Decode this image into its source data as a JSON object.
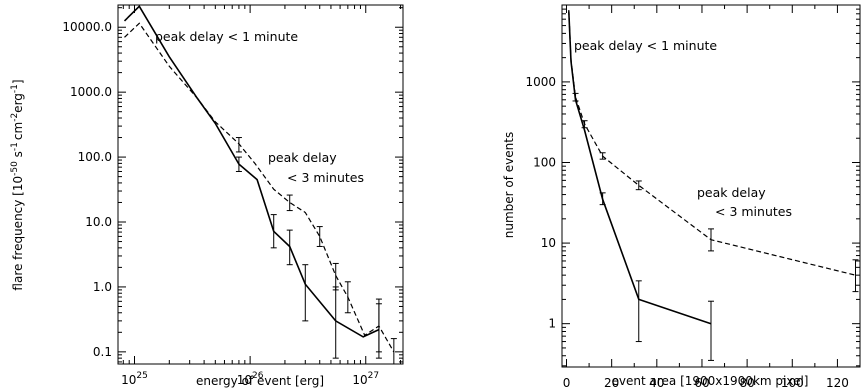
{
  "chart_data": [
    {
      "type": "line",
      "title": "",
      "xlabel": "energy of event [erg]",
      "ylabel": "flare frequency [10^-50 s^-1 cm^-2 erg^-1]",
      "ylabel_parts": [
        "flare frequency [10",
        "-50",
        " s",
        "-1",
        "cm",
        "-2",
        "erg",
        "-1",
        "]"
      ],
      "xscale": "log",
      "yscale": "log",
      "xlim": [
        7.2e+24,
        2.1e+27
      ],
      "ylim": [
        0.065,
        22000
      ],
      "x_ticks": [
        {
          "value": 1e+25,
          "base": "10",
          "exp": "25"
        },
        {
          "value": 1e+26,
          "base": "10",
          "exp": "26"
        },
        {
          "value": 1e+27,
          "base": "10",
          "exp": "27"
        }
      ],
      "y_ticks": [
        {
          "value": 10000,
          "label": "10000.0"
        },
        {
          "value": 1000,
          "label": "1000.0"
        },
        {
          "value": 100,
          "label": "100.0"
        },
        {
          "value": 10,
          "label": "10.0"
        },
        {
          "value": 1,
          "label": "1.0"
        },
        {
          "value": 0.1,
          "label": "0.1"
        }
      ],
      "series": [
        {
          "name": "peak delay < 1 minute",
          "style": "solid",
          "x": [
            8.2e+24,
            1.1e+25,
            2e+25,
            3.5e+25,
            5e+25,
            8e+25,
            1.15e+26,
            1.6e+26,
            2.2e+26,
            3e+26,
            5.5e+26,
            9.5e+26,
            1.3e+27
          ],
          "y": [
            12500,
            21000,
            3500,
            800,
            330,
            78,
            45,
            7.2,
            4.2,
            1.1,
            0.3,
            0.17,
            0.22
          ],
          "errors": [
            {
              "x": 8e+25,
              "low": 60,
              "high": 100
            },
            {
              "x": 1.6e+26,
              "low": 4.0,
              "high": 13
            },
            {
              "x": 2.2e+26,
              "low": 2.2,
              "high": 7.5
            },
            {
              "x": 3e+26,
              "low": 0.3,
              "high": 2.2
            },
            {
              "x": 5.5e+26,
              "low": 0.08,
              "high": 1.0
            },
            {
              "x": 1.3e+27,
              "low": 0.08,
              "high": 0.65
            }
          ]
        },
        {
          "name": "peak delay < 3 minutes",
          "style": "dashed",
          "x": [
            8.2e+24,
            1.1e+25,
            2e+25,
            3.5e+25,
            5e+25,
            8e+25,
            1.1e+26,
            1.6e+26,
            2.2e+26,
            3e+26,
            4e+26,
            5.5e+26,
            7e+26,
            9.8e+26,
            1.3e+27,
            1.75e+27
          ],
          "y": [
            7000,
            11500,
            2500,
            800,
            350,
            160,
            80,
            32,
            20,
            14,
            6,
            1.5,
            0.7,
            0.18,
            0.25,
            0.1
          ],
          "errors": [
            {
              "x": 8e+25,
              "low": 120,
              "high": 200
            },
            {
              "x": 2.2e+26,
              "low": 15,
              "high": 26
            },
            {
              "x": 4e+26,
              "low": 4.2,
              "high": 8.5
            },
            {
              "x": 5.5e+26,
              "low": 0.9,
              "high": 2.3
            },
            {
              "x": 7e+26,
              "low": 0.4,
              "high": 1.2
            },
            {
              "x": 1.3e+27,
              "low": 0.1,
              "high": 0.55
            },
            {
              "x": 1.75e+27,
              "low": 0.065,
              "high": 0.16
            }
          ]
        }
      ],
      "annotations": [
        {
          "text": "peak delay < 1 minute",
          "series": 0
        },
        {
          "text": "peak delay",
          "series": 1
        },
        {
          "text": "< 3 minutes",
          "series": 1
        }
      ]
    },
    {
      "type": "line",
      "title": "",
      "xlabel": "event area [1900x1900km pixel]",
      "ylabel": "number of events",
      "xscale": "linear",
      "yscale": "log",
      "xlim": [
        -2,
        130
      ],
      "ylim": [
        0.29,
        9000
      ],
      "x_ticks": [
        0,
        20,
        40,
        60,
        80,
        100,
        120
      ],
      "y_ticks": [
        {
          "value": 1000,
          "label": "1000"
        },
        {
          "value": 100,
          "label": "100"
        },
        {
          "value": 10,
          "label": "10"
        },
        {
          "value": 1,
          "label": "1"
        }
      ],
      "series": [
        {
          "name": "peak delay < 1 minute",
          "style": "solid",
          "x": [
            1,
            2,
            4,
            8,
            16,
            32,
            64
          ],
          "y": [
            7500,
            1800,
            600,
            250,
            35,
            2,
            1
          ],
          "errors": [
            {
              "x": 16,
              "low": 30,
              "high": 42
            },
            {
              "x": 32,
              "low": 0.6,
              "high": 3.4
            },
            {
              "x": 64,
              "low": 0.35,
              "high": 1.9
            }
          ]
        },
        {
          "name": "peak delay < 3 minutes",
          "style": "dashed",
          "x": [
            1,
            2,
            4,
            8,
            16,
            32,
            64,
            128
          ],
          "y": [
            7800,
            1900,
            650,
            300,
            120,
            52,
            11,
            4
          ],
          "errors": [
            {
              "x": 4,
              "low": 580,
              "high": 720
            },
            {
              "x": 8,
              "low": 270,
              "high": 330
            },
            {
              "x": 16,
              "low": 110,
              "high": 132
            },
            {
              "x": 32,
              "low": 46,
              "high": 59
            },
            {
              "x": 64,
              "low": 8,
              "high": 15
            },
            {
              "x": 128,
              "low": 2.5,
              "high": 6.2
            }
          ]
        }
      ],
      "annotations": [
        {
          "text": "peak delay < 1 minute",
          "series": 0
        },
        {
          "text": "peak delay",
          "series": 1
        },
        {
          "text": "< 3 minutes",
          "series": 1
        }
      ]
    }
  ]
}
